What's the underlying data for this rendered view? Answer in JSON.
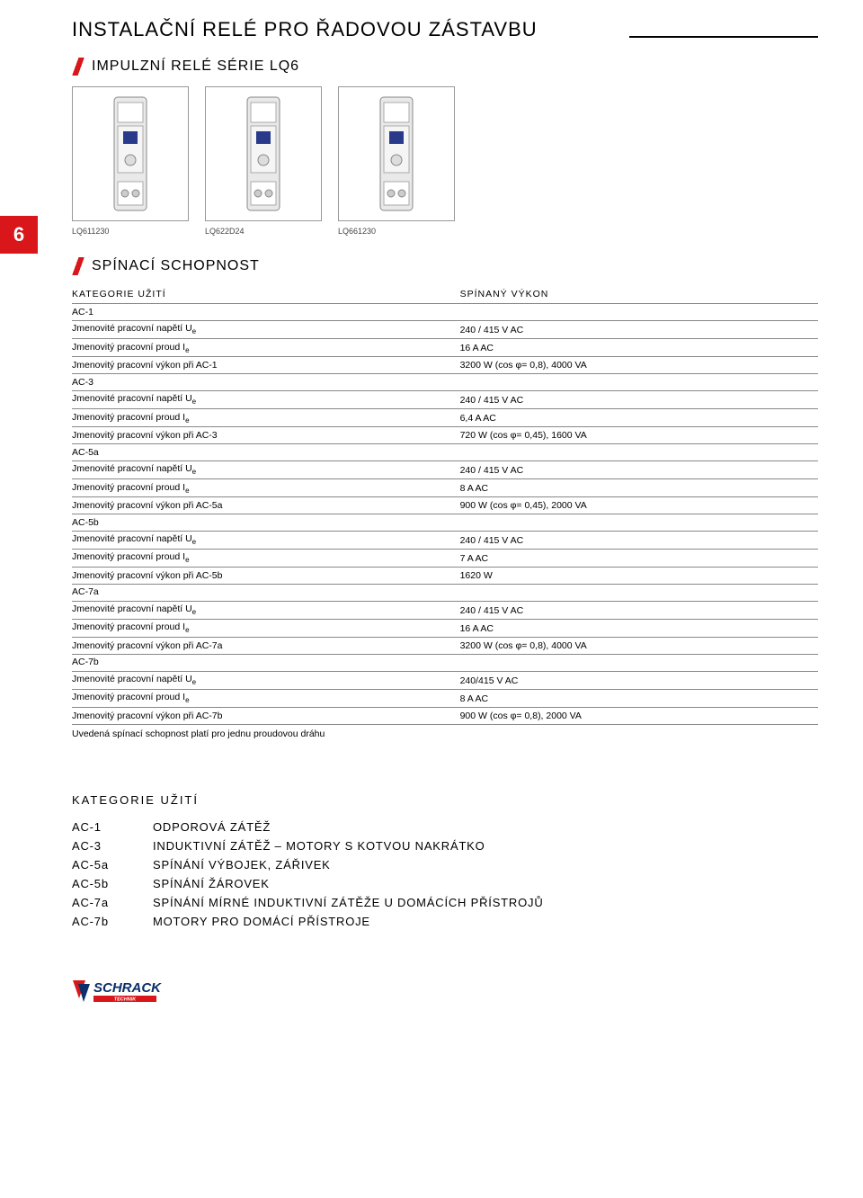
{
  "page": {
    "title": "INSTALAČNÍ RELÉ PRO ŘADOVOU ZÁSTAVBU",
    "tab_number": "6"
  },
  "section1": {
    "heading": "IMPULZNÍ RELÉ SÉRIE LQ6"
  },
  "products": [
    {
      "caption": "LQ611230"
    },
    {
      "caption": "LQ622D24"
    },
    {
      "caption": "LQ661230"
    }
  ],
  "section2": {
    "heading": "SPÍNACÍ SCHOPNOST"
  },
  "spec_header": {
    "left": "KATEGORIE UŽITÍ",
    "right": "SPÍNANÝ VÝKON"
  },
  "spec_groups": [
    {
      "code": "AC-1",
      "rows": [
        {
          "label_html": "Jmenovité pracovní napětí U<sub class=\"sub-e\">e</sub>",
          "value": "240 / 415 V AC"
        },
        {
          "label_html": "Jmenovitý pracovní proud I<sub class=\"sub-e\">e</sub>",
          "value": "16 A AC"
        },
        {
          "label_html": "Jmenovitý pracovní  výkon při AC-1",
          "value": "3200  W (cos φ= 0,8), 4000 VA"
        }
      ]
    },
    {
      "code": "AC-3",
      "rows": [
        {
          "label_html": "Jmenovité pracovní napětí U<sub class=\"sub-e\">e</sub>",
          "value": "240 / 415 V AC"
        },
        {
          "label_html": "Jmenovitý pracovní proud I<sub class=\"sub-e\">e</sub>",
          "value": "6,4 A AC"
        },
        {
          "label_html": "Jmenovitý pracovní  výkon při AC-3",
          "value": "720 W (cos φ= 0,45), 1600 VA"
        }
      ]
    },
    {
      "code": "AC-5a",
      "rows": [
        {
          "label_html": "Jmenovité pracovní napětí U<sub class=\"sub-e\">e</sub>",
          "value": "240 / 415 V AC"
        },
        {
          "label_html": "Jmenovitý pracovní proud I<sub class=\"sub-e\">e</sub>",
          "value": "8 A AC"
        },
        {
          "label_html": "Jmenovitý pracovní výkon při AC-5a",
          "value": "900 W (cos φ= 0,45), 2000 VA"
        }
      ]
    },
    {
      "code": "AC-5b",
      "rows": [
        {
          "label_html": "Jmenovité pracovní napětí U<sub class=\"sub-e\">e</sub>",
          "value": "240 / 415 V AC"
        },
        {
          "label_html": "Jmenovitý pracovní proud I<sub class=\"sub-e\">e</sub>",
          "value": "7 A AC"
        },
        {
          "label_html": "Jmenovitý pracovní výkon při AC-5b",
          "value": "1620 W"
        }
      ]
    },
    {
      "code": "AC-7a",
      "rows": [
        {
          "label_html": "Jmenovité pracovní napětí U<sub class=\"sub-e\">e</sub>",
          "value": "240 / 415 V AC"
        },
        {
          "label_html": "Jmenovitý pracovní proud I<sub class=\"sub-e\">e</sub>",
          "value": "16 A AC"
        },
        {
          "label_html": "Jmenovitý pracovní výkon při AC-7a",
          "value": "3200 W (cos φ= 0,8), 4000 VA"
        }
      ]
    },
    {
      "code": "AC-7b",
      "rows": [
        {
          "label_html": "Jmenovité pracovní napětí U<sub class=\"sub-e\">e</sub>",
          "value": "240/415 V AC"
        },
        {
          "label_html": "Jmenovitý pracovní proud I<sub class=\"sub-e\">e</sub>",
          "value": "8 A AC"
        },
        {
          "label_html": "Jmenovitý pracovní výkon při AC-7b",
          "value": "900 W (cos φ= 0,8), 2000 VA"
        }
      ]
    }
  ],
  "footnote": "Uvedená spínací schopnost platí pro jednu proudovou dráhu",
  "categories": {
    "title": "KATEGORIE UŽITÍ",
    "items": [
      {
        "code": "AC-1",
        "desc": "ODPOROVÁ ZÁTĚŽ"
      },
      {
        "code": "AC-3",
        "desc": "INDUKTIVNÍ ZÁTĚŽ – MOTORY S KOTVOU NAKRÁTKO"
      },
      {
        "code": "AC-5a",
        "desc": "SPÍNÁNÍ VÝBOJEK, ZÁŘIVEK"
      },
      {
        "code": "AC-5b",
        "desc": "SPÍNÁNÍ ŽÁROVEK"
      },
      {
        "code": "AC-7a",
        "desc": "SPÍNÁNÍ MÍRNÉ INDUKTIVNÍ ZÁTĚŽE U DOMÁCÍCH PŘÍSTROJŮ"
      },
      {
        "code": "AC-7b",
        "desc": "MOTORY PRO DOMÁCÍ PŘÍSTROJE"
      }
    ]
  },
  "styling": {
    "accent_color": "#d9161a",
    "text_color": "#000000",
    "border_color": "#888888",
    "logo_blue": "#0a2f6b",
    "logo_red": "#d9161a"
  }
}
